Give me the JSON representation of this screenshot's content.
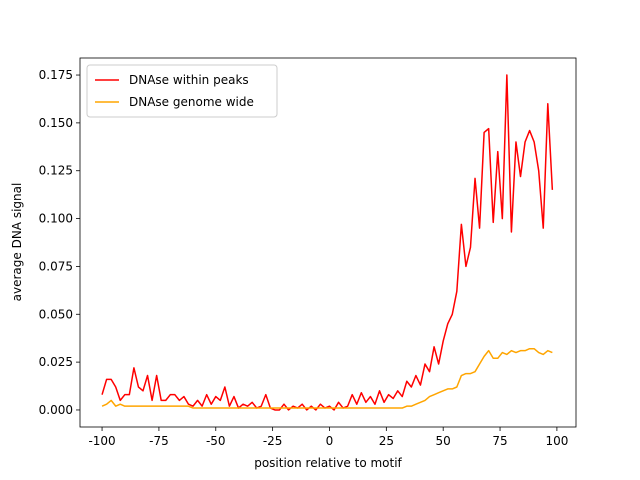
{
  "chart_data": {
    "type": "line",
    "xlabel": "position relative to motif",
    "ylabel": "average DNA signal",
    "x": [
      -100,
      -98,
      -96,
      -94,
      -92,
      -90,
      -88,
      -86,
      -84,
      -82,
      -80,
      -78,
      -76,
      -74,
      -72,
      -70,
      -68,
      -66,
      -64,
      -62,
      -60,
      -58,
      -56,
      -54,
      -52,
      -50,
      -48,
      -46,
      -44,
      -42,
      -40,
      -38,
      -36,
      -34,
      -32,
      -30,
      -28,
      -26,
      -24,
      -22,
      -20,
      -18,
      -16,
      -14,
      -12,
      -10,
      -8,
      -6,
      -4,
      -2,
      0,
      2,
      4,
      6,
      8,
      10,
      12,
      14,
      16,
      18,
      20,
      22,
      24,
      26,
      28,
      30,
      32,
      34,
      36,
      38,
      40,
      42,
      44,
      46,
      48,
      50,
      52,
      54,
      56,
      58,
      60,
      62,
      64,
      66,
      68,
      70,
      72,
      74,
      76,
      78,
      80,
      82,
      84,
      86,
      88,
      90,
      92,
      94,
      96,
      98
    ],
    "series": [
      {
        "name": "DNAse within peaks",
        "color": "#ff0000",
        "values": [
          0.008,
          0.016,
          0.016,
          0.012,
          0.005,
          0.008,
          0.008,
          0.022,
          0.012,
          0.01,
          0.018,
          0.005,
          0.018,
          0.005,
          0.005,
          0.008,
          0.008,
          0.005,
          0.007,
          0.003,
          0.002,
          0.005,
          0.002,
          0.008,
          0.003,
          0.007,
          0.005,
          0.012,
          0.002,
          0.007,
          0.001,
          0.003,
          0.002,
          0.004,
          0.001,
          0.002,
          0.008,
          0.001,
          0.0,
          0.0,
          0.003,
          0.0,
          0.002,
          0.001,
          0.003,
          0.0,
          0.002,
          0.0,
          0.003,
          0.001,
          0.002,
          0.0,
          0.004,
          0.001,
          0.002,
          0.008,
          0.003,
          0.009,
          0.004,
          0.007,
          0.003,
          0.01,
          0.004,
          0.008,
          0.006,
          0.01,
          0.007,
          0.015,
          0.012,
          0.018,
          0.013,
          0.024,
          0.02,
          0.033,
          0.024,
          0.036,
          0.045,
          0.05,
          0.062,
          0.097,
          0.075,
          0.085,
          0.121,
          0.095,
          0.145,
          0.147,
          0.098,
          0.135,
          0.1,
          0.175,
          0.093,
          0.14,
          0.122,
          0.14,
          0.146,
          0.14,
          0.125,
          0.095,
          0.16,
          0.115
        ]
      },
      {
        "name": "DNAse genome wide",
        "color": "#ffa500",
        "values": [
          0.002,
          0.003,
          0.005,
          0.002,
          0.003,
          0.002,
          0.002,
          0.002,
          0.002,
          0.002,
          0.002,
          0.002,
          0.002,
          0.002,
          0.002,
          0.002,
          0.002,
          0.002,
          0.002,
          0.002,
          0.001,
          0.001,
          0.001,
          0.001,
          0.001,
          0.001,
          0.001,
          0.001,
          0.001,
          0.001,
          0.001,
          0.001,
          0.001,
          0.001,
          0.001,
          0.001,
          0.001,
          0.001,
          0.001,
          0.001,
          0.001,
          0.001,
          0.001,
          0.001,
          0.001,
          0.001,
          0.001,
          0.001,
          0.001,
          0.001,
          0.001,
          0.001,
          0.001,
          0.001,
          0.001,
          0.001,
          0.001,
          0.001,
          0.001,
          0.001,
          0.001,
          0.001,
          0.001,
          0.001,
          0.001,
          0.001,
          0.001,
          0.002,
          0.002,
          0.003,
          0.004,
          0.005,
          0.007,
          0.008,
          0.009,
          0.01,
          0.011,
          0.011,
          0.012,
          0.018,
          0.019,
          0.019,
          0.02,
          0.024,
          0.028,
          0.031,
          0.027,
          0.027,
          0.03,
          0.029,
          0.031,
          0.03,
          0.031,
          0.031,
          0.032,
          0.032,
          0.03,
          0.029,
          0.031,
          0.03
        ]
      }
    ],
    "xlim": [
      -109.7,
      108.4
    ],
    "ylim": [
      -0.0089,
      0.1839
    ],
    "xticks": [
      -100,
      -75,
      -50,
      -25,
      0,
      25,
      50,
      75,
      100
    ],
    "yticks": [
      {
        "value": 0,
        "label": "0.000"
      },
      {
        "value": 0.025,
        "label": "0.025"
      },
      {
        "value": 0.05,
        "label": "0.050"
      },
      {
        "value": 0.075,
        "label": "0.075"
      },
      {
        "value": 0.1,
        "label": "0.100"
      },
      {
        "value": 0.125,
        "label": "0.125"
      },
      {
        "value": 0.15,
        "label": "0.150"
      },
      {
        "value": 0.175,
        "label": "0.175"
      }
    ],
    "legend": "upper left"
  }
}
